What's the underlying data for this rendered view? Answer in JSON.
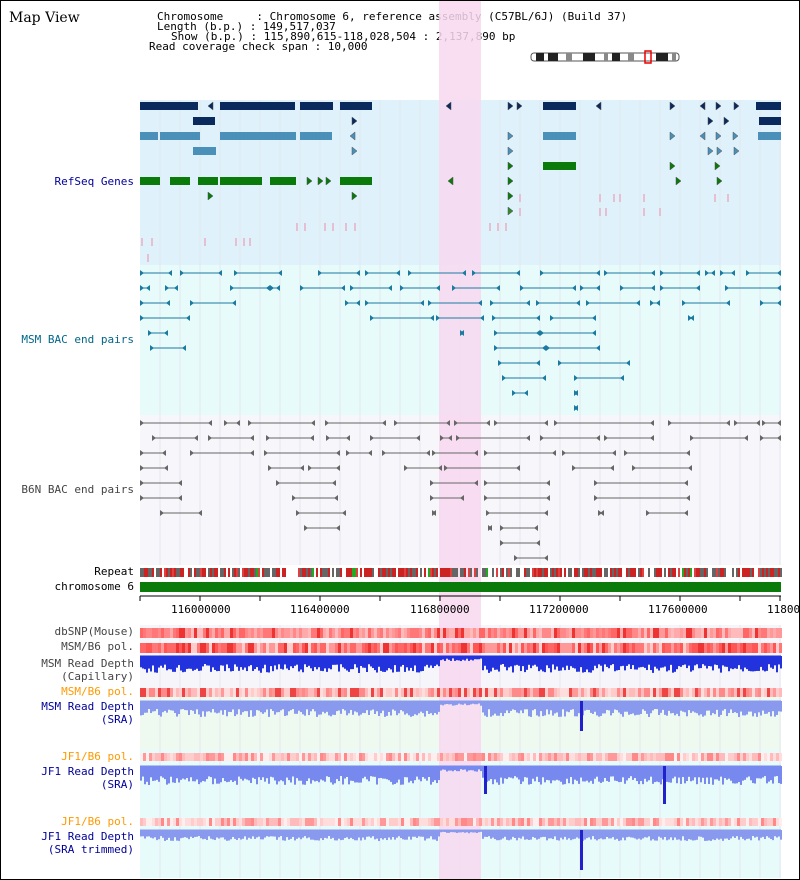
{
  "header": {
    "view_title": "Map View",
    "chromosome_label": "Chromosome     : Chromosome 6, reference assembly (C57BL/6J) (Build 37)",
    "length_label": "Length (b.p.) : 149,517,037",
    "show_label": "Show (b.p.) : 115,890,615-118,028,504 : 2,137,890 bp",
    "coverage_label": "Read coverage check span : 10,000"
  },
  "tracks": {
    "refseq": "RefSeq Genes",
    "msm_bac": "MSM BAC end pairs",
    "b6n_bac": "B6N BAC end pairs",
    "repeat": "Repeat",
    "chromosome": "chromosome 6",
    "dbsnp": "dbSNP(Mouse)",
    "msm_b6_pol_1": "MSM/B6 pol.",
    "msm_depth_cap_1": "MSM Read Depth",
    "msm_depth_cap_2": "(Capillary)",
    "msm_b6_pol_2": "MSM/B6 pol.",
    "msm_depth_sra_1": "MSM Read Depth",
    "msm_depth_sra_2": "(SRA)",
    "jf1_b6_pol_1": "JF1/B6 pol.",
    "jf1_depth_sra_1": "JF1 Read Depth",
    "jf1_depth_sra_2": "(SRA)",
    "jf1_b6_pol_2": "JF1/B6 pol.",
    "jf1_depth_trim_1": "JF1 Read Depth",
    "jf1_depth_trim_2": "(SRA trimmed)"
  },
  "axis": {
    "ticks": [
      "116000000",
      "116400000",
      "116800000",
      "117200000",
      "117600000",
      "11800"
    ]
  },
  "colors": {
    "refseq_label": "#000099",
    "msm_label": "#006688",
    "b6n_label": "#444444",
    "pol_label": "#ff9900",
    "depth_label": "#000099",
    "gene_navy": "#0a2a5e",
    "gene_steel": "#4a90b8",
    "gene_green": "#0a7a0a",
    "highlight": "#f8d8f0"
  }
}
